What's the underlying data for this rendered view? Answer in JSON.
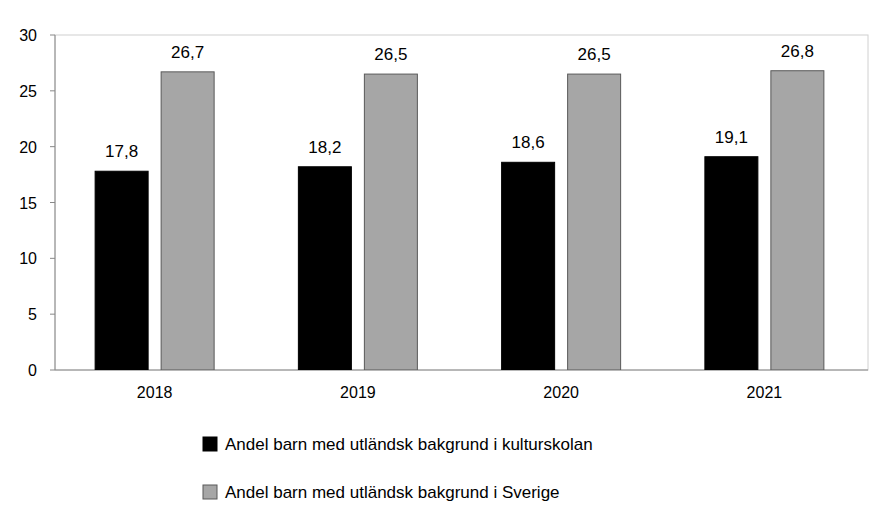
{
  "chart_data": {
    "type": "bar",
    "categories": [
      "2018",
      "2019",
      "2020",
      "2021"
    ],
    "series": [
      {
        "name": "Andel barn med utländsk bakgrund i kulturskolan",
        "color": "#000000",
        "values": [
          17.8,
          18.2,
          18.6,
          19.1
        ],
        "value_labels": [
          "17,8",
          "18,2",
          "18,6",
          "19,1"
        ]
      },
      {
        "name": "Andel barn med utländsk bakgrund i Sverige",
        "color": "#a6a6a6",
        "values": [
          26.7,
          26.5,
          26.5,
          26.8
        ],
        "value_labels": [
          "26,7",
          "26,5",
          "26,5",
          "26,8"
        ]
      }
    ],
    "ylim": [
      0,
      30
    ],
    "yticks": [
      0,
      5,
      10,
      15,
      20,
      25,
      30
    ],
    "grid": false,
    "data_labels": true,
    "legend": "bottom"
  }
}
